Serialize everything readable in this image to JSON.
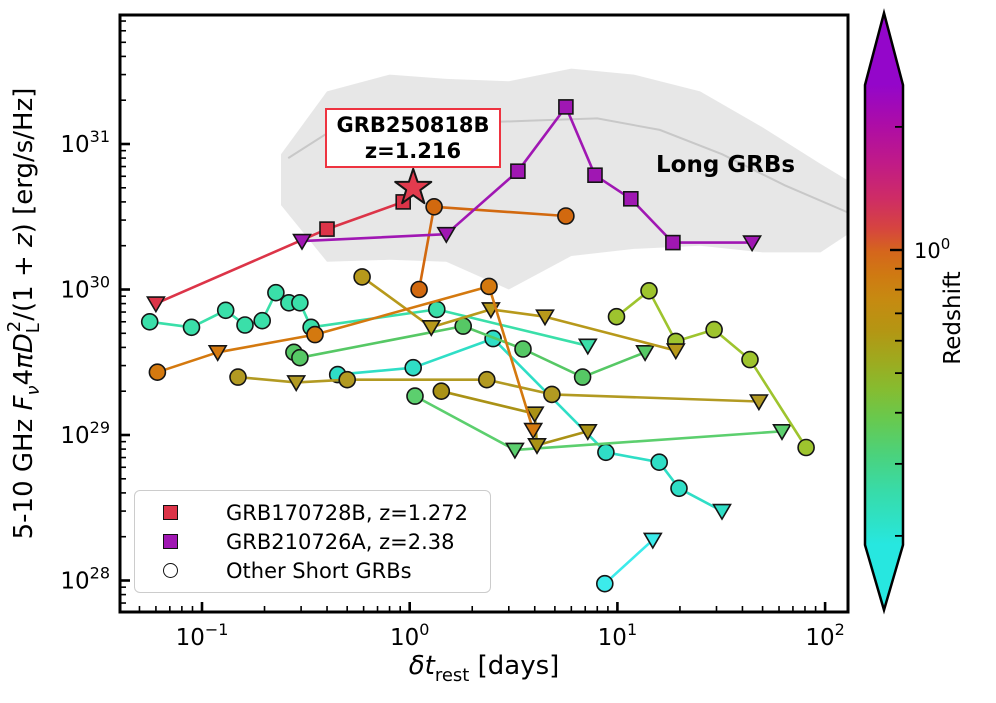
{
  "chart_data": {
    "type": "line-scatter",
    "xscale": "log",
    "yscale": "log",
    "xlabel": "δt_rest [days]",
    "ylabel": "5-10 GHz F_ν 4πD_L²/(1 + z) [erg/s/Hz]",
    "xlabel_parts": [
      {
        "t": "δt",
        "s": "i"
      },
      {
        "t": "rest",
        "s": "sub"
      },
      {
        "t": " [days]",
        "s": "n"
      }
    ],
    "ylabel_parts": [
      {
        "t": "5-10 GHz ",
        "s": "n"
      },
      {
        "t": "F",
        "s": "i"
      },
      {
        "t": "ν",
        "s": "subi"
      },
      {
        "t": "4",
        "s": "n"
      },
      {
        "t": "π",
        "s": "i"
      },
      {
        "t": "D",
        "s": "i"
      },
      {
        "t": "L",
        "s": "sub"
      },
      {
        "t": "2",
        "s": "supstack"
      },
      {
        "t": "/(1 + ",
        "s": "n"
      },
      {
        "t": "z",
        "s": "i"
      },
      {
        "t": ") [erg/s/Hz]",
        "s": "n"
      }
    ],
    "xlim": [
      0.0403,
      128.9
    ],
    "ylim": [
      6.1e+27,
      7.7e+31
    ],
    "x_ticks": [
      {
        "exp": -1
      },
      {
        "exp": 0
      },
      {
        "exp": 1
      },
      {
        "exp": 2
      }
    ],
    "y_ticks": [
      {
        "exp": 28
      },
      {
        "exp": 29
      },
      {
        "exp": 30
      },
      {
        "exp": 31
      }
    ],
    "grid": false,
    "legend": {
      "position": "lower-left",
      "items": [
        {
          "marker": "square",
          "color": "#dc3448",
          "label": "GRB170728B, z=1.272"
        },
        {
          "marker": "square",
          "color": "#a017b3",
          "label": "GRB210726A, z=2.38"
        },
        {
          "marker": "circle-open",
          "color": "#ffffff",
          "label": "Other Short GRBs"
        }
      ]
    },
    "annotations": {
      "grb_box": {
        "line1": "GRB250818B",
        "line2": "z=1.216",
        "border_color": "#ee3340",
        "star": {
          "x_days": 1.04,
          "y_lum": 5e+30,
          "color": "#e23b4e"
        }
      },
      "long_grbs": {
        "text": "Long GRBs"
      }
    },
    "long_grb_band": {
      "fill_color": "#d3d3d3",
      "line_color": "#c8c8c8",
      "x": [
        0.24,
        0.4,
        0.8,
        1.5,
        3.0,
        6.0,
        12,
        25,
        50,
        95,
        129
      ],
      "top": [
        8.5e+30,
        2.3e+31,
        3e+31,
        2.8e+31,
        2.7e+31,
        3.3e+31,
        3e+31,
        2.3e+31,
        1.3e+31,
        7.3e+30,
        5.6e+30
      ],
      "bottom": [
        3.8e+30,
        1.55e+30,
        1.6e+30,
        1.55e+30,
        1e+30,
        1.7e+30,
        1.9e+30,
        2e+30,
        1.8e+30,
        1.8e+30,
        2.4e+30
      ],
      "midline_x": [
        0.26,
        0.5,
        1.0,
        2.0,
        4.0,
        8.0,
        16,
        32,
        64,
        128
      ],
      "midline_y": [
        8e+30,
        1.45e+31,
        1.5e+31,
        1.4e+31,
        1.45e+31,
        1.5e+31,
        1.25e+31,
        8.5e+30,
        5.2e+30,
        3.4e+30
      ]
    },
    "colorbar": {
      "label": "Redshift",
      "scale": "log",
      "z_min": 0.19,
      "z_max": 2.53,
      "major_ticks_z": [
        1.0
      ],
      "tick_label": {
        "exp": 0
      },
      "minor_ticks_z": [
        0.2,
        0.3,
        0.4,
        0.5,
        0.6,
        0.7,
        0.8,
        0.9,
        2.0
      ],
      "gradient": [
        {
          "pos": 0.0,
          "color": "#9406ca"
        },
        {
          "pos": 0.12,
          "color": "#9406ca"
        },
        {
          "pos": 0.19,
          "color": "#ae0da5"
        },
        {
          "pos": 0.25,
          "color": "#c01a88"
        },
        {
          "pos": 0.31,
          "color": "#ce2c66"
        },
        {
          "pos": 0.36,
          "color": "#d64440"
        },
        {
          "pos": 0.4,
          "color": "#d5661c"
        },
        {
          "pos": 0.44,
          "color": "#cf7a12"
        },
        {
          "pos": 0.48,
          "color": "#c68a11"
        },
        {
          "pos": 0.53,
          "color": "#b59513"
        },
        {
          "pos": 0.58,
          "color": "#9fa91e"
        },
        {
          "pos": 0.63,
          "color": "#86bc30"
        },
        {
          "pos": 0.68,
          "color": "#68c94e"
        },
        {
          "pos": 0.74,
          "color": "#4bd27c"
        },
        {
          "pos": 0.8,
          "color": "#38dba8"
        },
        {
          "pos": 0.86,
          "color": "#2ce3cc"
        },
        {
          "pos": 0.89,
          "color": "#27e7e0"
        },
        {
          "pos": 1.0,
          "color": "#27e7e0"
        }
      ]
    },
    "series": [
      {
        "name": "GRB170728B",
        "z": 1.272,
        "highlight": true,
        "color": "#dc3448",
        "points": [
          [
            0.06,
            8e+29,
            "v"
          ],
          [
            0.4,
            2.6e+30,
            "s"
          ],
          [
            0.93,
            4e+30,
            "s"
          ]
        ]
      },
      {
        "name": "GRB210726A",
        "z": 2.38,
        "highlight": true,
        "color": "#a017b3",
        "points": [
          [
            0.303,
            2.15e+30,
            "v"
          ],
          [
            1.5,
            2.4e+30,
            "v"
          ],
          [
            3.32,
            6.5e+30,
            "s"
          ],
          [
            5.65,
            1.8e+31,
            "s"
          ],
          [
            7.8,
            6.1e+30,
            "s"
          ],
          [
            11.6,
            4.2e+30,
            "s"
          ],
          [
            18.5,
            2.1e+30,
            "s"
          ],
          [
            44.5,
            2.1e+30,
            "v"
          ]
        ]
      },
      {
        "name": "short-grb-1",
        "z": 0.16,
        "highlight": false,
        "color": "#3adfa9",
        "points": [
          [
            0.056,
            6e+29,
            "o"
          ],
          [
            0.089,
            5.5e+29,
            "o"
          ],
          [
            0.13,
            7.2e+29,
            "o"
          ],
          [
            0.161,
            5.7e+29,
            "o"
          ],
          [
            0.195,
            6.1e+29,
            "o"
          ],
          [
            0.227,
            9.5e+29,
            "o"
          ],
          [
            0.262,
            8.1e+29,
            "o"
          ],
          [
            0.296,
            8.1e+29,
            "o"
          ],
          [
            0.335,
            5.5e+29,
            "o"
          ],
          [
            1.35,
            7.3e+29,
            "o"
          ],
          [
            7.2,
            4.1e+29,
            "v"
          ]
        ]
      },
      {
        "name": "short-grb-2",
        "z": 0.2,
        "highlight": false,
        "color": "#2fdec6",
        "points": [
          [
            0.45,
            2.6e+29,
            "o"
          ],
          [
            1.04,
            2.9e+29,
            "o"
          ],
          [
            2.52,
            4.6e+29,
            "o"
          ],
          [
            8.8,
            7.6e+28,
            "o"
          ],
          [
            15.9,
            6.5e+28,
            "o"
          ],
          [
            19.8,
            4.3e+28,
            "o"
          ],
          [
            31.9,
            3e+28,
            "v"
          ]
        ]
      },
      {
        "name": "short-grb-3",
        "z": 0.12,
        "highlight": false,
        "color": "#3cebeb",
        "points": [
          [
            8.7,
            9.5e+27,
            "o"
          ],
          [
            14.8,
            1.9e+28,
            "v"
          ]
        ]
      },
      {
        "name": "short-grb-4",
        "z": 0.45,
        "highlight": false,
        "color": "#56c865",
        "points": [
          [
            0.277,
            3.7e+29,
            "o"
          ],
          [
            0.296,
            3.4e+29,
            "o"
          ],
          [
            1.81,
            5.6e+29,
            "o"
          ],
          [
            3.51,
            3.9e+29,
            "o"
          ],
          [
            6.8,
            2.5e+29,
            "o"
          ],
          [
            13.6,
            3.7e+29,
            "v"
          ]
        ]
      },
      {
        "name": "short-grb-5",
        "z": 0.5,
        "highlight": false,
        "color": "#5ccf6e",
        "points": [
          [
            1.06,
            1.85e+29,
            "o"
          ],
          [
            3.21,
            7.9e+28,
            "v"
          ],
          [
            62,
            1.06e+29,
            "v"
          ]
        ]
      },
      {
        "name": "short-grb-6",
        "z": 0.6,
        "highlight": false,
        "color": "#9ec42e",
        "points": [
          [
            9.9,
            6.5e+29,
            "o"
          ],
          [
            14.2,
            9.8e+29,
            "o"
          ],
          [
            19.1,
            4.4e+29,
            "o"
          ],
          [
            29.2,
            5.3e+29,
            "o"
          ],
          [
            43.5,
            3.3e+29,
            "o"
          ],
          [
            81,
            8.2e+28,
            "o"
          ]
        ]
      },
      {
        "name": "short-grb-7",
        "z": 0.85,
        "highlight": false,
        "color": "#b7991b",
        "points": [
          [
            0.59,
            1.22e+30,
            "o"
          ],
          [
            1.27,
            5.5e+29,
            "v"
          ],
          [
            2.46,
            7.3e+29,
            "v"
          ],
          [
            4.48,
            6.5e+29,
            "v"
          ],
          [
            19.1,
            3.8e+29,
            "v"
          ]
        ]
      },
      {
        "name": "short-grb-8",
        "z": 0.75,
        "highlight": false,
        "color": "#b29a22",
        "points": [
          [
            0.149,
            2.5e+29,
            "o"
          ],
          [
            0.284,
            2.3e+29,
            "v"
          ],
          [
            0.5,
            2.4e+29,
            "o"
          ],
          [
            2.35,
            2.4e+29,
            "o"
          ],
          [
            4.84,
            1.9e+29,
            "o"
          ],
          [
            48,
            1.7e+29,
            "v"
          ]
        ]
      },
      {
        "name": "short-grb-9",
        "z": 0.9,
        "highlight": false,
        "color": "#aa9216",
        "points": [
          [
            1.42,
            2e+29,
            "o"
          ],
          [
            4.0,
            1.4e+29,
            "v"
          ],
          [
            4.1,
            8.5e+28,
            "v"
          ],
          [
            7.2,
            1.06e+29,
            "v"
          ]
        ]
      },
      {
        "name": "short-grb-10",
        "z": 1.0,
        "highlight": false,
        "color": "#d4790f",
        "points": [
          [
            0.061,
            2.7e+29,
            "o"
          ],
          [
            0.119,
            3.7e+29,
            "v"
          ],
          [
            0.35,
            4.9e+29,
            "o"
          ],
          [
            2.41,
            1.05e+30,
            "o"
          ],
          [
            3.93,
            1.08e+29,
            "v"
          ]
        ]
      },
      {
        "name": "short-grb-11",
        "z": 1.6,
        "highlight": false,
        "color": "#d2690f",
        "points": [
          [
            1.11,
            1e+30,
            "o"
          ],
          [
            1.31,
            3.7e+30,
            "o"
          ],
          [
            5.65,
            3.2e+30,
            "o"
          ]
        ]
      }
    ]
  }
}
